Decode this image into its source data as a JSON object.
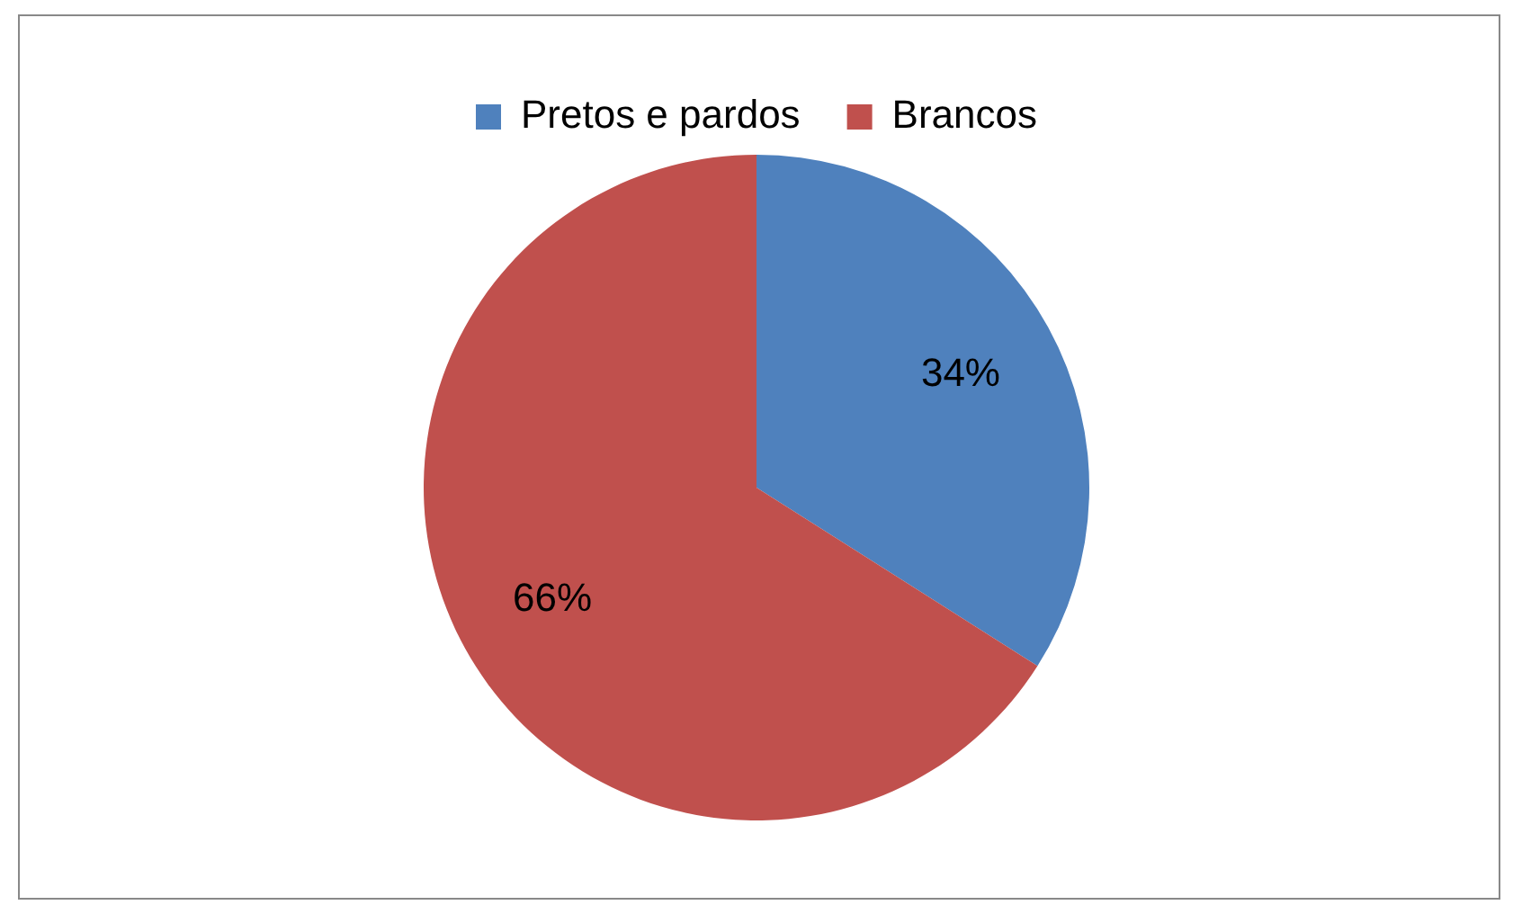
{
  "chart_data": {
    "type": "pie",
    "categories": [
      "Pretos e pardos",
      "Brancos"
    ],
    "values": [
      34,
      66
    ],
    "colors": [
      "#4f81bd",
      "#c0504d"
    ],
    "value_labels": [
      "34%",
      "66%"
    ],
    "legend": "top"
  }
}
